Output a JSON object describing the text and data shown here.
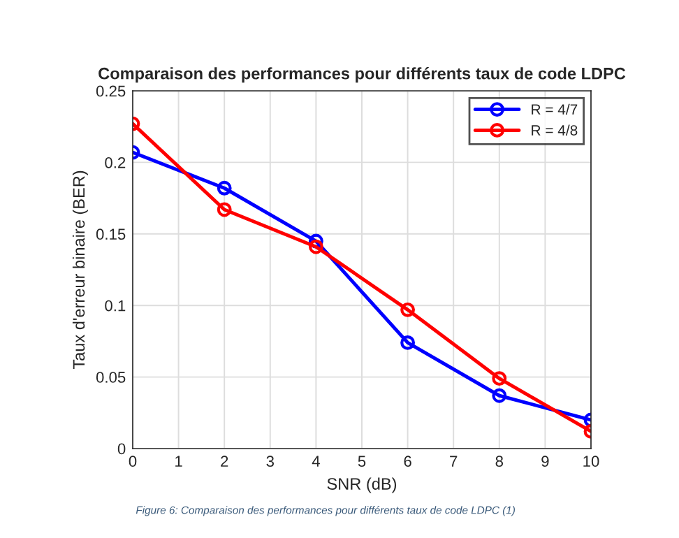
{
  "chart_data": {
    "type": "line",
    "title": "Comparaison des performances pour différents taux de code LDPC",
    "xlabel": "SNR (dB)",
    "ylabel": "Taux d'erreur binaire (BER)",
    "x": [
      0,
      2,
      4,
      6,
      8,
      10
    ],
    "series": [
      {
        "name": "R = 4/7",
        "color": "#0000ff",
        "values": [
          0.207,
          0.182,
          0.145,
          0.074,
          0.037,
          0.02
        ]
      },
      {
        "name": "R = 4/8",
        "color": "#ff0000",
        "values": [
          0.227,
          0.167,
          0.141,
          0.097,
          0.049,
          0.012
        ]
      }
    ],
    "xlim": [
      0,
      10
    ],
    "xticks": [
      0,
      1,
      2,
      3,
      4,
      5,
      6,
      7,
      8,
      9,
      10
    ],
    "ylim": [
      0,
      0.25
    ],
    "yticks": [
      0,
      0.05,
      0.1,
      0.15,
      0.2,
      0.25
    ],
    "grid": true,
    "legend": "top right",
    "marker": "circle",
    "line_style": "solid",
    "annotations": [
      "Figure 6: Comparaison des performances pour différents taux de code LDPC (1)"
    ]
  }
}
